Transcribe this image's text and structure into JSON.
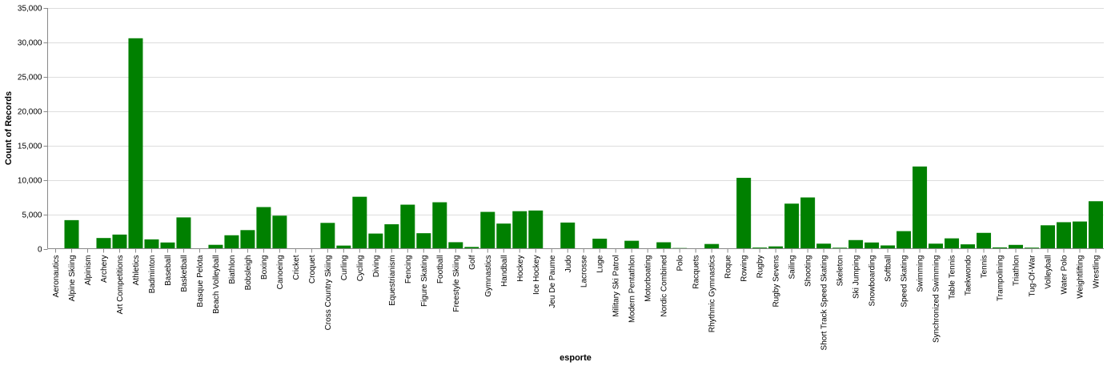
{
  "chart_data": {
    "type": "bar",
    "xlabel": "esporte",
    "ylabel": "Count of Records",
    "ylim": [
      0,
      35000
    ],
    "y_ticks": [
      0,
      5000,
      10000,
      15000,
      20000,
      25000,
      30000,
      35000
    ],
    "y_tick_labels": [
      "0",
      "5,000",
      "10,000",
      "15,000",
      "20,000",
      "25,000",
      "30,000",
      "35,000"
    ],
    "grid": true,
    "bar_color": "#008000",
    "categories": [
      "Aeronautics",
      "Alpine Skiing",
      "Alpinism",
      "Archery",
      "Art Competitions",
      "Athletics",
      "Badminton",
      "Baseball",
      "Basketball",
      "Basque Pelota",
      "Beach Volleyball",
      "Biathlon",
      "Bobsleigh",
      "Boxing",
      "Canoeing",
      "Cricket",
      "Croquet",
      "Cross Country Skiing",
      "Curling",
      "Cycling",
      "Diving",
      "Equestrianism",
      "Fencing",
      "Figure Skating",
      "Football",
      "Freestyle Skiing",
      "Golf",
      "Gymnastics",
      "Handball",
      "Hockey",
      "Ice Hockey",
      "Jeu De Paume",
      "Judo",
      "Lacrosse",
      "Luge",
      "Military Ski Patrol",
      "Modern Pentathlon",
      "Motorboating",
      "Nordic Combined",
      "Polo",
      "Racquets",
      "Rhythmic Gymnastics",
      "Roque",
      "Rowing",
      "Rugby",
      "Rugby Sevens",
      "Sailing",
      "Shooting",
      "Short Track Speed Skating",
      "Skeleton",
      "Ski Jumping",
      "Snowboarding",
      "Softball",
      "Speed Skating",
      "Swimming",
      "Synchronized Swimming",
      "Table Tennis",
      "Taekwondo",
      "Tennis",
      "Trampolining",
      "Triathlon",
      "Tug-Of-War",
      "Volleyball",
      "Water Polo",
      "Weightlifting",
      "Wrestling"
    ],
    "values": [
      1,
      4150,
      25,
      1550,
      2050,
      30600,
      1350,
      900,
      4550,
      2,
      560,
      1950,
      2700,
      6050,
      4800,
      25,
      10,
      3750,
      450,
      7550,
      2200,
      3550,
      6400,
      2250,
      6750,
      940,
      250,
      5350,
      3650,
      5450,
      5550,
      10,
      3800,
      60,
      1450,
      25,
      1150,
      15,
      930,
      95,
      15,
      680,
      4,
      10300,
      160,
      330,
      6550,
      7450,
      730,
      140,
      1250,
      900,
      470,
      2550,
      11950,
      730,
      1500,
      630,
      2300,
      180,
      550,
      150,
      3400,
      3850,
      3950,
      6900
    ]
  }
}
